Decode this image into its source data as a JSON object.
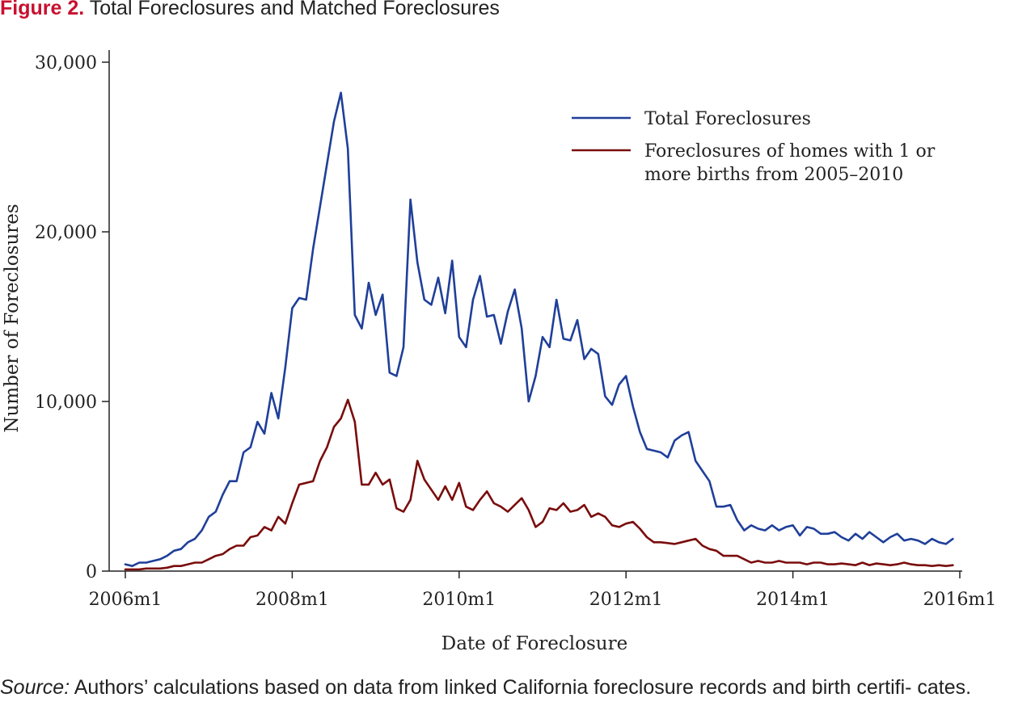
{
  "figure": {
    "label": "Figure 2.",
    "title": "Total Foreclosures and Matched Foreclosures"
  },
  "source": {
    "label": "Source:",
    "text": "Authors’ calculations based on data from linked California foreclosure records and birth certifi- cates."
  },
  "chart_data": {
    "type": "line",
    "title": "Total Foreclosures and Matched Foreclosures",
    "xlabel": "Date of Foreclosure",
    "ylabel": "Number of Foreclosures",
    "x_start": "2006m1",
    "x_end": "2015m12",
    "x_frequency": "monthly",
    "x_tick_labels": [
      "2006m1",
      "2008m1",
      "2010m1",
      "2012m1",
      "2014m1",
      "2016m1"
    ],
    "x_ticks": [
      "2006-01",
      "2008-01",
      "2010-01",
      "2012-01",
      "2014-01",
      "2016-01"
    ],
    "xlim": [
      "2006-01",
      "2016-01"
    ],
    "y_tick_labels": [
      "0",
      "10,000",
      "20,000",
      "30,000"
    ],
    "y_ticks": [
      0,
      10000,
      20000,
      30000
    ],
    "ylim": [
      0,
      30000
    ],
    "grid": false,
    "legend_position": "top-right",
    "series": [
      {
        "name": "Total Foreclosures",
        "color": "#1f3f99",
        "values": [
          400,
          300,
          500,
          500,
          600,
          700,
          900,
          1200,
          1300,
          1700,
          1900,
          2400,
          3200,
          3500,
          4500,
          5300,
          5300,
          7000,
          7300,
          8800,
          8100,
          10500,
          9000,
          12000,
          15500,
          16100,
          16000,
          19000,
          21500,
          24000,
          26500,
          28200,
          24900,
          15100,
          14300,
          17000,
          15100,
          16300,
          11700,
          11500,
          13200,
          21900,
          18200,
          16000,
          15700,
          17300,
          15200,
          18300,
          13800,
          13200,
          16000,
          17400,
          15000,
          15100,
          13400,
          15300,
          16600,
          14300,
          10000,
          11500,
          13800,
          13200,
          16000,
          13700,
          13600,
          14800,
          12500,
          13100,
          12800,
          10300,
          9800,
          11000,
          11500,
          9700,
          8200,
          7200,
          7100,
          7000,
          6700,
          7700,
          8000,
          8200,
          6500,
          5900,
          5300,
          3800,
          3800,
          3900,
          3000,
          2400,
          2700,
          2500,
          2400,
          2700,
          2400,
          2600,
          2700,
          2100,
          2600,
          2500,
          2200,
          2200,
          2300,
          2000,
          1800,
          2200,
          1900,
          2300,
          2000,
          1700,
          2000,
          2200,
          1800,
          1900,
          1800,
          1600,
          1900,
          1700,
          1600,
          1900
        ]
      },
      {
        "name": "Foreclosures of homes with 1 or more births from 2005–2010",
        "legend_lines": [
          "Foreclosures of homes with 1 or",
          "more births from 2005–2010"
        ],
        "color": "#7a0c0c",
        "values": [
          100,
          100,
          100,
          150,
          150,
          150,
          200,
          300,
          300,
          400,
          500,
          500,
          700,
          900,
          1000,
          1300,
          1500,
          1500,
          2000,
          2100,
          2600,
          2400,
          3200,
          2800,
          4000,
          5100,
          5200,
          5300,
          6500,
          7300,
          8500,
          9000,
          10100,
          8800,
          5100,
          5100,
          5800,
          5100,
          5400,
          3700,
          3500,
          4200,
          6500,
          5400,
          4800,
          4200,
          5000,
          4200,
          5200,
          3800,
          3600,
          4200,
          4700,
          4000,
          3800,
          3500,
          3900,
          4300,
          3600,
          2600,
          2900,
          3700,
          3600,
          4000,
          3500,
          3600,
          3900,
          3200,
          3400,
          3200,
          2700,
          2600,
          2800,
          2900,
          2500,
          2000,
          1700,
          1700,
          1650,
          1600,
          1700,
          1800,
          1900,
          1500,
          1300,
          1200,
          900,
          900,
          900,
          700,
          500,
          600,
          500,
          500,
          600,
          500,
          500,
          500,
          400,
          500,
          500,
          400,
          400,
          450,
          400,
          350,
          500,
          350,
          450,
          400,
          350,
          400,
          500,
          400,
          350,
          350,
          300,
          350,
          300,
          350
        ]
      }
    ]
  }
}
